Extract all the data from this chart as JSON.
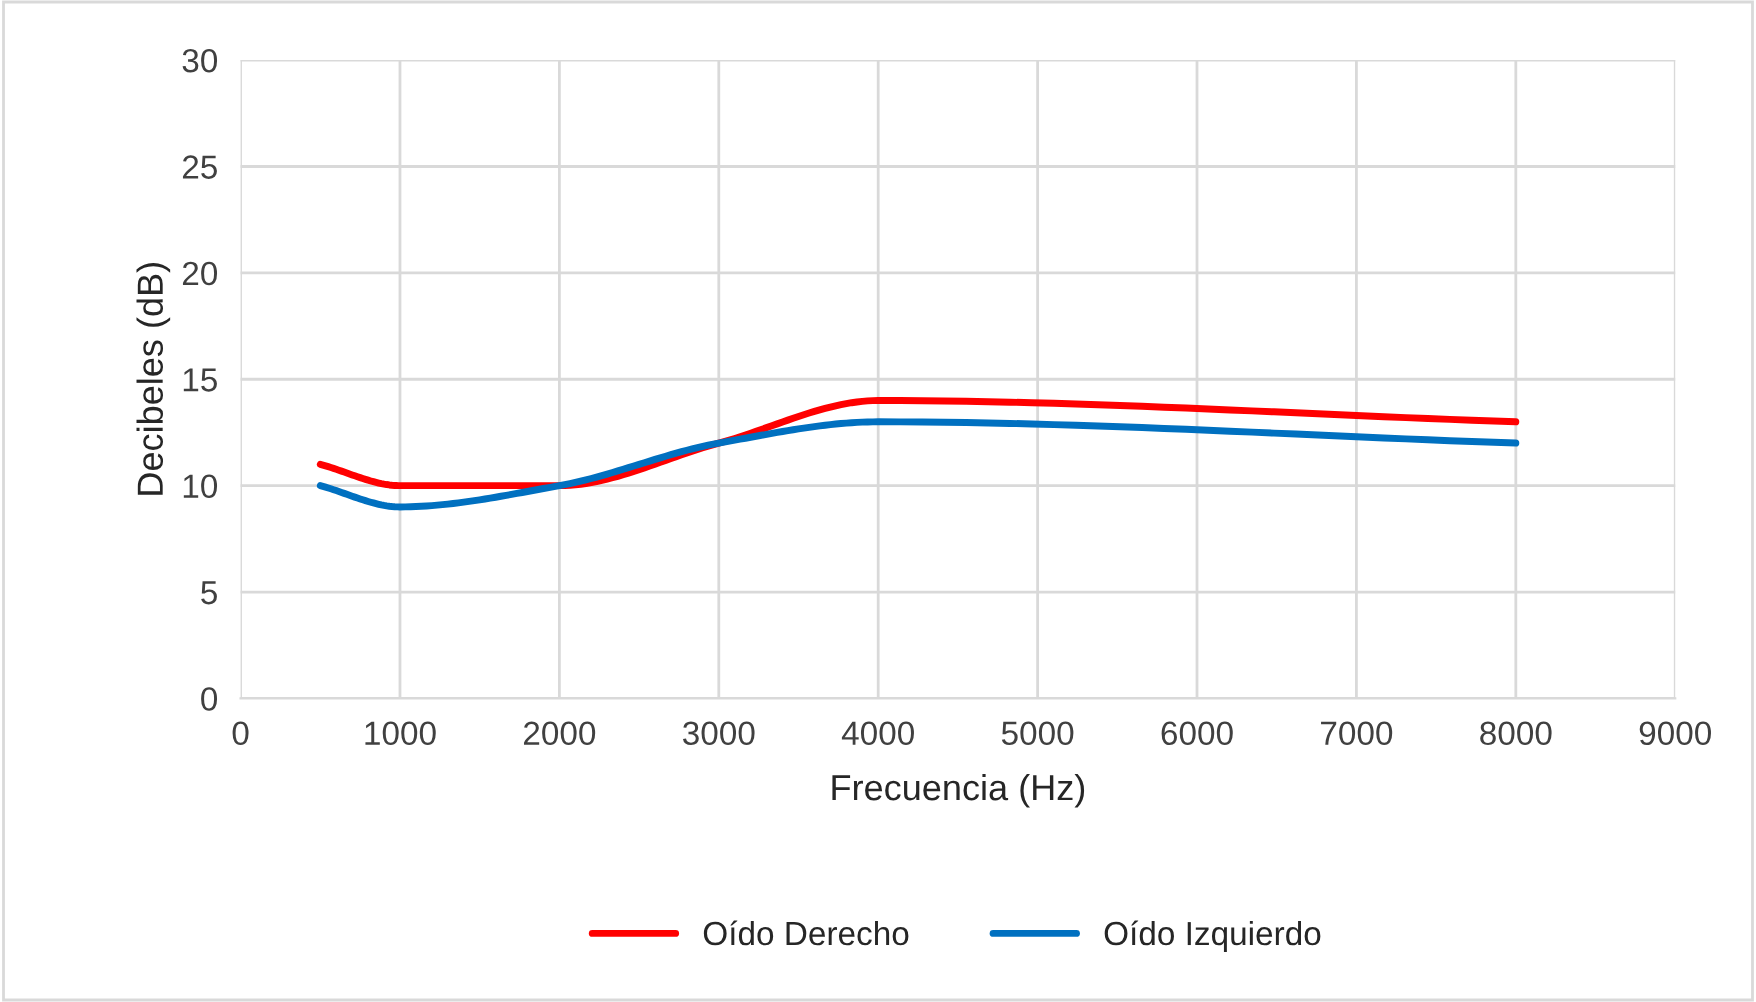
{
  "chart_data": {
    "type": "line",
    "xlabel": "Frecuencia (Hz)",
    "ylabel": "Decibeles (dB)",
    "x": [
      500,
      1000,
      2000,
      3000,
      4000,
      8000
    ],
    "series": [
      {
        "name": "Oído Derecho",
        "color": "#ff0000",
        "values": [
          11,
          10,
          10,
          12,
          14,
          13
        ]
      },
      {
        "name": "Oído Izquierdo",
        "color": "#0070c0",
        "values": [
          10,
          9,
          10,
          12,
          13,
          12
        ]
      }
    ],
    "xlim": [
      0,
      9000
    ],
    "xticks": [
      0,
      1000,
      2000,
      3000,
      4000,
      5000,
      6000,
      7000,
      8000,
      9000
    ],
    "ylim": [
      0,
      30
    ],
    "yticks": [
      0,
      5,
      10,
      15,
      20,
      25,
      30
    ],
    "grid": true,
    "legend": "bottom",
    "marker": "none",
    "line_style": "solid"
  }
}
